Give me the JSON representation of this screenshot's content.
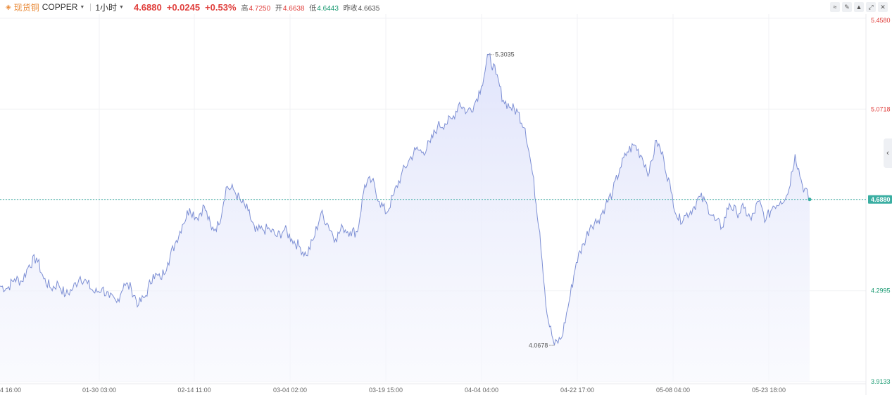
{
  "header": {
    "symbol_name": "现货铜",
    "symbol_code": "COPPER",
    "interval": "1小时",
    "price": "4.6880",
    "change": "+0.0245",
    "change_pct": "+0.53%",
    "high_label": "高",
    "high": "4.7250",
    "open_label": "开",
    "open": "4.6638",
    "low_label": "低",
    "low": "4.6443",
    "prev_close_label": "昨收",
    "prev_close": "4.6635"
  },
  "toolbar": {
    "icons": [
      "line-style-icon",
      "pen-icon",
      "mountain-icon",
      "expand-icon",
      "close-icon"
    ]
  },
  "colors": {
    "line": "#7d8fd4",
    "area_top": "#dfe3fb",
    "up": "#e0403d",
    "down": "#1a9a72",
    "current_line": "#3aaea2",
    "grid": "#f1f2f4"
  },
  "chart_data": {
    "type": "area",
    "ylim": [
      3.9133,
      5.458
    ],
    "y_ticks": [
      5.458,
      5.0718,
      4.688,
      4.2995,
      3.9133
    ],
    "y_tick_labels": [
      "5.4580",
      "5.0718",
      "4.6880",
      "4.2995",
      "3.9133"
    ],
    "x_tick_labels": [
      "4 16:00",
      "01-30 03:00",
      "02-14 11:00",
      "03-04 02:00",
      "03-19 15:00",
      "04-04 04:00",
      "04-22 17:00",
      "05-08 04:00",
      "05-23 18:00"
    ],
    "current_value": 4.688,
    "current_label": "4.6880",
    "max_annotation": {
      "value": 5.3035,
      "label": "5.3035"
    },
    "min_annotation": {
      "value": 4.0678,
      "label": "4.0678"
    },
    "grid": true,
    "n_points": 112,
    "values": [
      4.32,
      4.31,
      4.35,
      4.34,
      4.41,
      4.44,
      4.35,
      4.31,
      4.33,
      4.28,
      4.31,
      4.36,
      4.33,
      4.29,
      4.31,
      4.27,
      4.25,
      4.33,
      4.31,
      4.24,
      4.28,
      4.37,
      4.35,
      4.42,
      4.5,
      4.58,
      4.65,
      4.61,
      4.66,
      4.56,
      4.58,
      4.74,
      4.73,
      4.68,
      4.64,
      4.55,
      4.56,
      4.56,
      4.53,
      4.56,
      4.52,
      4.49,
      4.45,
      4.52,
      4.63,
      4.58,
      4.52,
      4.57,
      4.55,
      4.55,
      4.75,
      4.77,
      4.68,
      4.63,
      4.71,
      4.79,
      4.85,
      4.9,
      4.89,
      4.93,
      5.0,
      5.01,
      5.03,
      5.1,
      5.06,
      5.09,
      5.17,
      5.3035,
      5.22,
      5.11,
      5.08,
      5.06,
      4.99,
      4.8,
      4.55,
      4.2,
      4.0678,
      4.1,
      4.25,
      4.42,
      4.5,
      4.58,
      4.6,
      4.66,
      4.72,
      4.82,
      4.89,
      4.92,
      4.87,
      4.8,
      4.94,
      4.86,
      4.72,
      4.6,
      4.62,
      4.65,
      4.7,
      4.66,
      4.6,
      4.57,
      4.67,
      4.63,
      4.65,
      4.6,
      4.68,
      4.6,
      4.66,
      4.68,
      4.71,
      4.88,
      4.75,
      4.688
    ]
  }
}
